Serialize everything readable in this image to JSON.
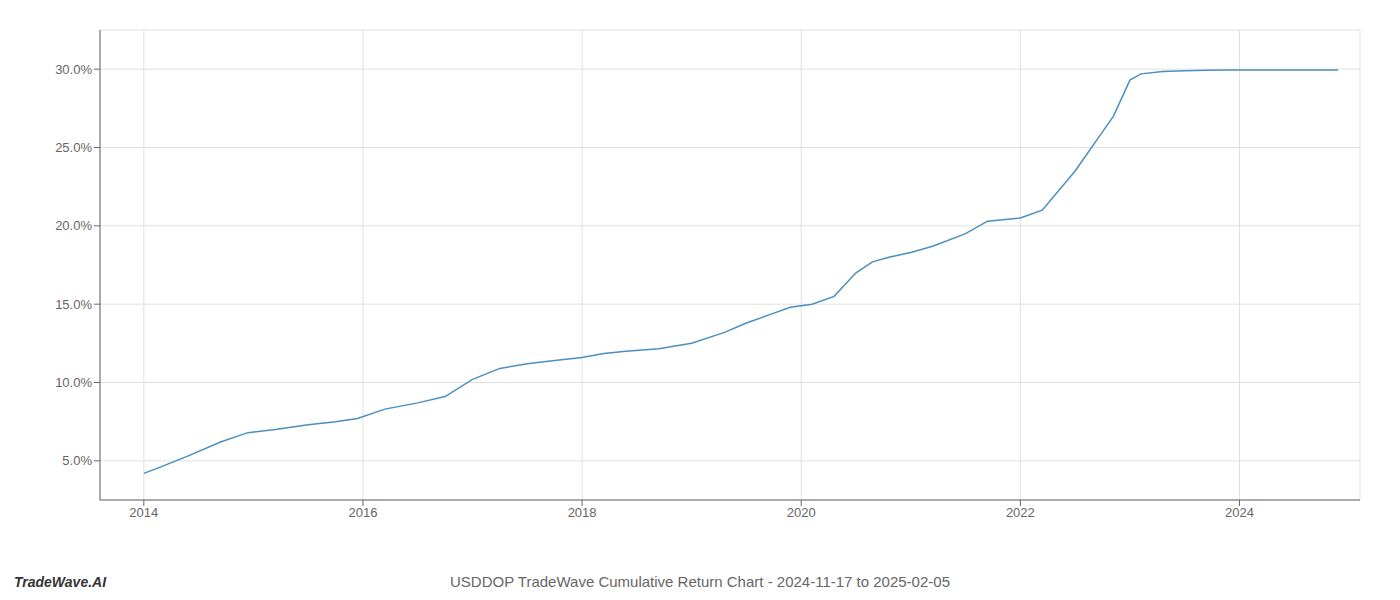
{
  "chart_data": {
    "type": "line",
    "title": "USDDOP TradeWave Cumulative Return Chart - 2024-11-17 to 2025-02-05",
    "annotations": [
      "TradeWave.AI"
    ],
    "x": [
      2014.0,
      2014.15,
      2014.4,
      2014.7,
      2014.95,
      2015.2,
      2015.5,
      2015.75,
      2015.95,
      2016.2,
      2016.5,
      2016.75,
      2017.0,
      2017.25,
      2017.5,
      2017.75,
      2018.0,
      2018.2,
      2018.4,
      2018.7,
      2019.0,
      2019.3,
      2019.5,
      2019.7,
      2019.9,
      2020.1,
      2020.3,
      2020.5,
      2020.65,
      2020.8,
      2021.0,
      2021.2,
      2021.5,
      2021.7,
      2022.0,
      2022.2,
      2022.5,
      2022.7,
      2022.85,
      2023.0,
      2023.1,
      2023.3,
      2023.5,
      2023.7,
      2023.9,
      2024.0,
      2024.5,
      2024.9
    ],
    "values": [
      4.2,
      4.6,
      5.3,
      6.2,
      6.8,
      7.0,
      7.3,
      7.5,
      7.7,
      8.3,
      8.7,
      9.1,
      10.2,
      10.9,
      11.2,
      11.4,
      11.6,
      11.85,
      12.0,
      12.15,
      12.5,
      13.2,
      13.8,
      14.3,
      14.8,
      15.0,
      15.5,
      17.0,
      17.7,
      18.0,
      18.3,
      18.7,
      19.5,
      20.3,
      20.5,
      21.0,
      23.5,
      25.5,
      27.0,
      29.3,
      29.7,
      29.85,
      29.9,
      29.93,
      29.95,
      29.95,
      29.95,
      29.95
    ],
    "color": "#4a8fc0",
    "xlim": [
      2013.6,
      2025.1
    ],
    "ylim": [
      2.5,
      32.5
    ],
    "xticks": [
      2014,
      2016,
      2018,
      2020,
      2022,
      2024
    ],
    "yticks": [
      {
        "value": 5.0,
        "label": "5.0%"
      },
      {
        "value": 10.0,
        "label": "10.0%"
      },
      {
        "value": 15.0,
        "label": "15.0%"
      },
      {
        "value": 20.0,
        "label": "20.0%"
      },
      {
        "value": 25.0,
        "label": "25.0%"
      },
      {
        "value": 30.0,
        "label": "30.0%"
      }
    ],
    "grid": true
  }
}
